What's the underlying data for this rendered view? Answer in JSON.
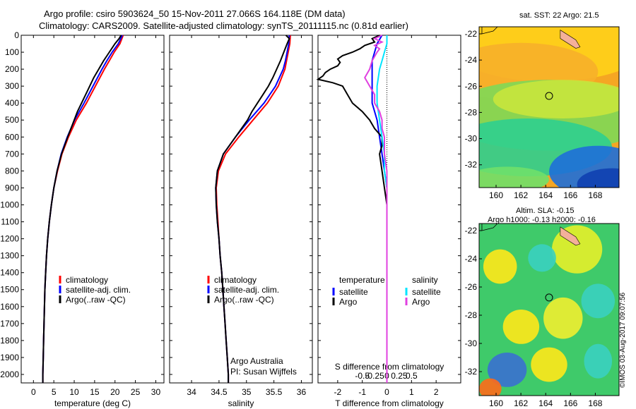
{
  "header": {
    "line1": "Argo profile: csiro 5903624_50 15-Nov-2011 27.066S 164.118E (DM data)",
    "line2": "Climatology: CARS2009. Satellite-adjusted climatology: synTS_20111115.nc (0.81d earlier)"
  },
  "maps": {
    "sst_title": "sat. SST: 22 Argo: 21.5",
    "sla_title1": "Altim. SLA: -0.15",
    "sla_title2": "Argo h1000: -0.13 h2000: -0.16",
    "lat_ticks": [
      "-22",
      "-24",
      "-26",
      "-28",
      "-30",
      "-32"
    ],
    "lon_ticks": [
      "160",
      "162",
      "164",
      "166",
      "168"
    ]
  },
  "copyright": "©IMOS 03-Aug-2017 09:07:56",
  "annotations": {
    "argo_australia": "Argo Australia",
    "pi": "PI: Susan Wijffels"
  },
  "colors": {
    "climatology": "#ff0000",
    "satellite": "#0000ff",
    "argo": "#000000",
    "sat_salinity": "#00e5ff",
    "argo_salinity": "#e040e0"
  },
  "chart_data": [
    {
      "type": "line",
      "xlabel": "temperature (deg C)",
      "ylabel": "",
      "xlim": [
        -3,
        32
      ],
      "ylim": [
        2050,
        0
      ],
      "xticks": [
        0,
        5,
        10,
        15,
        20,
        25,
        30
      ],
      "yticks": [
        0,
        100,
        200,
        300,
        400,
        500,
        600,
        700,
        800,
        900,
        1000,
        1100,
        1200,
        1300,
        1400,
        1500,
        1600,
        1700,
        1800,
        1900,
        2000
      ],
      "legend": [
        "climatology",
        "satellite-adj. clim.",
        "Argo(..raw -QC)"
      ],
      "series": [
        {
          "name": "climatology",
          "color": "#ff0000",
          "y": [
            0,
            50,
            100,
            150,
            200,
            300,
            400,
            500,
            600,
            700,
            800,
            900,
            1000,
            1100,
            1200,
            1300,
            1400,
            1500,
            1600,
            1700,
            1800,
            1900,
            2000,
            2050
          ],
          "x": [
            22.0,
            21.2,
            19.8,
            18.6,
            17.4,
            15.2,
            13.0,
            10.5,
            8.6,
            7.0,
            5.9,
            5.0,
            4.4,
            3.9,
            3.5,
            3.2,
            3.0,
            2.8,
            2.7,
            2.6,
            2.5,
            2.4,
            2.3,
            2.3
          ]
        },
        {
          "name": "satellite-adj. clim.",
          "color": "#0000ff",
          "y": [
            0,
            50,
            100,
            150,
            200,
            300,
            400,
            500,
            600,
            700,
            800,
            900,
            1000,
            1100,
            1200,
            1300,
            1400,
            1500,
            1600,
            1700,
            1800,
            1900,
            2000,
            2050
          ],
          "x": [
            21.8,
            20.8,
            19.3,
            18.0,
            16.8,
            14.6,
            12.4,
            10.1,
            8.3,
            6.8,
            5.8,
            5.0,
            4.4,
            3.9,
            3.5,
            3.2,
            3.0,
            2.8,
            2.7,
            2.6,
            2.5,
            2.4,
            2.3,
            2.3
          ]
        },
        {
          "name": "Argo(..raw -QC)",
          "color": "#000000",
          "y": [
            0,
            20,
            50,
            100,
            150,
            200,
            250,
            300,
            350,
            400,
            450,
            500,
            600,
            700,
            800,
            900,
            1000,
            1100,
            1200,
            1300,
            1400,
            1500,
            1600,
            1700,
            1800,
            1900,
            2000,
            2050
          ],
          "x": [
            21.5,
            21.0,
            20.0,
            18.6,
            17.2,
            16.0,
            14.8,
            13.8,
            12.8,
            11.8,
            10.8,
            10.0,
            8.4,
            6.9,
            5.8,
            5.0,
            4.4,
            3.9,
            3.5,
            3.2,
            3.0,
            2.8,
            2.7,
            2.6,
            2.5,
            2.4,
            2.3,
            2.3
          ]
        }
      ]
    },
    {
      "type": "line",
      "xlabel": "salinity",
      "ylabel": "",
      "xlim": [
        33.6,
        36.2
      ],
      "ylim": [
        2050,
        0
      ],
      "xticks": [
        34,
        34.5,
        35,
        35.5,
        36
      ],
      "yticks": [
        0,
        100,
        200,
        300,
        400,
        500,
        600,
        700,
        800,
        900,
        1000,
        1100,
        1200,
        1300,
        1400,
        1500,
        1600,
        1700,
        1800,
        1900,
        2000
      ],
      "legend": [
        "climatology",
        "satellite-adj. clim.",
        "Argo(..raw -QC)"
      ],
      "series": [
        {
          "name": "climatology",
          "color": "#ff0000",
          "y": [
            0,
            50,
            100,
            150,
            200,
            300,
            400,
            500,
            600,
            700,
            800,
            900,
            1000,
            1100,
            1200,
            1300,
            1400,
            1500,
            1600,
            1700,
            1800,
            1900,
            2000,
            2050
          ],
          "x": [
            35.8,
            35.79,
            35.76,
            35.73,
            35.7,
            35.58,
            35.38,
            35.12,
            34.86,
            34.62,
            34.49,
            34.45,
            34.46,
            34.48,
            34.5,
            34.52,
            34.55,
            34.57,
            34.59,
            34.61,
            34.63,
            34.65,
            34.67,
            34.67
          ]
        },
        {
          "name": "satellite-adj. clim.",
          "color": "#0000ff",
          "y": [
            0,
            50,
            100,
            150,
            200,
            300,
            400,
            500,
            600,
            700,
            800,
            900,
            1000,
            1100,
            1200,
            1300,
            1400,
            1500,
            1600,
            1700,
            1800,
            1900,
            2000,
            2050
          ],
          "x": [
            35.78,
            35.77,
            35.74,
            35.71,
            35.67,
            35.53,
            35.32,
            35.05,
            34.8,
            34.58,
            34.47,
            34.44,
            34.45,
            34.47,
            34.5,
            34.52,
            34.55,
            34.57,
            34.59,
            34.61,
            34.63,
            34.65,
            34.67,
            34.67
          ]
        },
        {
          "name": "Argo(..raw -QC)",
          "color": "#000000",
          "y": [
            0,
            20,
            50,
            100,
            150,
            200,
            250,
            300,
            350,
            400,
            450,
            500,
            600,
            700,
            800,
            900,
            1000,
            1100,
            1200,
            1300,
            1400,
            1500,
            1600,
            1700,
            1800,
            1900,
            2000,
            2050
          ],
          "x": [
            35.72,
            35.78,
            35.74,
            35.68,
            35.62,
            35.55,
            35.48,
            35.4,
            35.3,
            35.2,
            35.1,
            35.02,
            34.8,
            34.58,
            34.47,
            34.44,
            34.45,
            34.47,
            34.5,
            34.52,
            34.55,
            34.57,
            34.59,
            34.61,
            34.63,
            34.65,
            34.67,
            34.67
          ]
        }
      ]
    },
    {
      "type": "line",
      "xlabel": "T difference from climatology",
      "x2label": "S difference from climatology",
      "xlim": [
        -2.8,
        3.0
      ],
      "ylim": [
        2050,
        0
      ],
      "xticks": [
        -2,
        -1,
        0,
        1,
        2
      ],
      "x2ticks": [
        "-0.5",
        "-0.25",
        "0",
        "0.25",
        "0.5"
      ],
      "yticks": [
        0,
        100,
        200,
        300,
        400,
        500,
        600,
        700,
        800,
        900,
        1000,
        1100,
        1200,
        1300,
        1400,
        1500,
        1600,
        1700,
        1800,
        1900,
        2000
      ],
      "legend": [
        "temperature",
        "satellite",
        "Argo",
        "salinity",
        "satellite",
        "Argo"
      ],
      "series": [
        {
          "name": "temperature satellite",
          "color": "#0000ff",
          "y": [
            0,
            50,
            100,
            150,
            200,
            300,
            400,
            500,
            600,
            700,
            800,
            900,
            1000,
            1100,
            1200,
            1500,
            1800,
            2000,
            2050
          ],
          "x": [
            -0.2,
            -0.4,
            -0.5,
            -0.6,
            -0.6,
            -0.6,
            -0.6,
            -0.4,
            -0.3,
            -0.2,
            -0.1,
            0.0,
            0.0,
            0.0,
            0.0,
            0.0,
            0.0,
            0.0,
            0.0
          ]
        },
        {
          "name": "temperature Argo",
          "color": "#000000",
          "y": [
            0,
            20,
            40,
            60,
            80,
            100,
            120,
            140,
            160,
            180,
            200,
            220,
            240,
            260,
            280,
            300,
            350,
            400,
            450,
            500,
            550,
            600,
            650,
            700,
            800,
            900,
            1000,
            1100,
            1200,
            1500,
            1800,
            2000,
            2050
          ],
          "x": [
            -0.3,
            -0.6,
            -0.5,
            -0.9,
            -1.1,
            -1.4,
            -1.8,
            -2.0,
            -1.9,
            -2.0,
            -2.3,
            -2.5,
            -2.6,
            -2.8,
            -2.2,
            -1.8,
            -1.6,
            -1.4,
            -1.0,
            -0.7,
            -0.5,
            -0.2,
            -0.2,
            -0.3,
            -0.2,
            -0.1,
            0.0,
            0.0,
            0.0,
            0.0,
            0.0,
            0.0,
            0.0
          ]
        },
        {
          "name": "salinity satellite",
          "color": "#00e5ff",
          "y": [
            0,
            50,
            100,
            150,
            200,
            300,
            400,
            500,
            600,
            700,
            800,
            900,
            1000,
            1200,
            1500,
            1800,
            2000,
            2050
          ],
          "x": [
            0.0,
            0.0,
            -0.1,
            -0.2,
            -0.3,
            -0.4,
            -0.4,
            -0.3,
            -0.2,
            -0.1,
            -0.1,
            0.0,
            0.0,
            0.0,
            0.0,
            0.0,
            0.0,
            0.0
          ]
        },
        {
          "name": "salinity Argo",
          "color": "#e040e0",
          "y": [
            0,
            20,
            40,
            60,
            80,
            100,
            150,
            200,
            250,
            300,
            350,
            400,
            450,
            500,
            550,
            600,
            700,
            800,
            900,
            1000,
            1200,
            1500,
            1800,
            2000,
            2050
          ],
          "x": [
            -0.2,
            -0.5,
            -0.2,
            -0.5,
            -0.3,
            -0.4,
            -0.6,
            -0.7,
            -0.9,
            -0.7,
            -0.5,
            -0.5,
            -0.3,
            -0.2,
            -0.2,
            -0.1,
            -0.1,
            0.0,
            0.0,
            0.0,
            0.0,
            0.0,
            0.0,
            0.0,
            0.0
          ]
        }
      ]
    }
  ]
}
